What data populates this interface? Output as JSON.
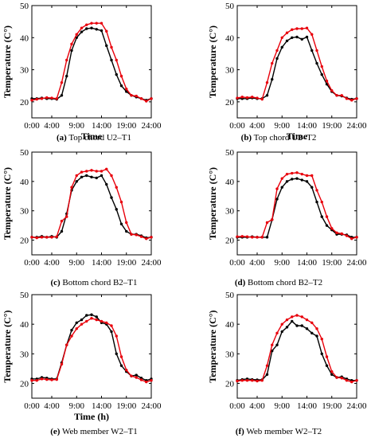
{
  "colors": {
    "series_a": "#000000",
    "series_b": "#e8000b",
    "axis": "#000000"
  },
  "chart_data": [
    {
      "type": "line",
      "caption_label": "(a)",
      "caption_text": " Top chord U2–T1",
      "xlabel": "Time",
      "ylabel": "Temperature (C°)",
      "xlim": [
        0,
        24
      ],
      "ylim": [
        15,
        50
      ],
      "x_ticks": [
        "0:00",
        "4:00",
        "9:00",
        "14:00",
        "19:00",
        "24:00"
      ],
      "y_ticks": [
        20,
        30,
        40,
        50
      ],
      "x": [
        0,
        1,
        2,
        3,
        4,
        5,
        6,
        7,
        8,
        9,
        10,
        11,
        12,
        13,
        14,
        15,
        16,
        17,
        18,
        19,
        20,
        21,
        22,
        23,
        24
      ],
      "series": [
        {
          "color": "#000000",
          "values": [
            21,
            21,
            21.2,
            21,
            21,
            20.8,
            22,
            28,
            36,
            40,
            41.8,
            42.8,
            43,
            42.6,
            42.2,
            37.5,
            33,
            28.5,
            25,
            23.2,
            22,
            21.5,
            21,
            20.5,
            21
          ]
        },
        {
          "color": "#e8000b",
          "values": [
            20.5,
            20.8,
            21,
            21.3,
            21.2,
            21,
            26,
            33,
            38,
            41,
            43,
            44,
            44.5,
            44.5,
            44.5,
            42,
            37,
            33,
            28,
            24,
            22,
            21.8,
            21,
            20.2,
            21
          ]
        }
      ]
    },
    {
      "type": "line",
      "caption_label": "(b)",
      "caption_text": " Top chord U2–T2",
      "xlabel": "Time",
      "ylabel": "Temperature (C°)",
      "xlim": [
        0,
        24
      ],
      "ylim": [
        15,
        50
      ],
      "x_ticks": [
        "0:00",
        "4:00",
        "9:00",
        "14:00",
        "19:00",
        "24:00"
      ],
      "y_ticks": [
        20,
        30,
        40,
        50
      ],
      "x": [
        0,
        1,
        2,
        3,
        4,
        5,
        6,
        7,
        8,
        9,
        10,
        11,
        12,
        13,
        14,
        15,
        16,
        17,
        18,
        19,
        20,
        21,
        22,
        23,
        24
      ],
      "series": [
        {
          "color": "#000000",
          "values": [
            21,
            21,
            21,
            21.2,
            21,
            21,
            22,
            27,
            33.5,
            37,
            39,
            40,
            40.2,
            39.5,
            40.2,
            36,
            32,
            28.5,
            25.5,
            23.2,
            22,
            21.8,
            21.2,
            20.8,
            21
          ]
        },
        {
          "color": "#e8000b",
          "values": [
            21.2,
            21.5,
            21.3,
            21.5,
            21.2,
            20.8,
            26,
            32,
            36,
            40,
            41.5,
            42.5,
            42.8,
            42.8,
            43,
            41,
            36,
            31,
            26.5,
            23.5,
            22,
            22,
            21,
            20.5,
            21
          ]
        }
      ]
    },
    {
      "type": "line",
      "caption_label": "(c)",
      "caption_text": " Bottom chord B2–T1",
      "xlabel": "",
      "ylabel": "Temperature (C°)",
      "xlim": [
        0,
        24
      ],
      "ylim": [
        15,
        50
      ],
      "x_ticks": [
        "0:00",
        "4:00",
        "9:00",
        "14:00",
        "19:00",
        "24:00"
      ],
      "y_ticks": [
        20,
        30,
        40,
        50
      ],
      "x": [
        0,
        1,
        2,
        3,
        4,
        5,
        6,
        7,
        8,
        9,
        10,
        11,
        12,
        13,
        14,
        15,
        16,
        17,
        18,
        19,
        20,
        21,
        22,
        23,
        24
      ],
      "series": [
        {
          "color": "#000000",
          "values": [
            21,
            21,
            21.3,
            21,
            21.3,
            21,
            23,
            29,
            37,
            40,
            41.5,
            42,
            41.5,
            41.2,
            42,
            39,
            34.5,
            30.5,
            25.5,
            23,
            22,
            22,
            21.5,
            20.8,
            21
          ]
        },
        {
          "color": "#e8000b",
          "values": [
            21,
            20.8,
            21,
            21,
            21,
            21.2,
            26.5,
            28,
            38,
            42,
            43.2,
            43.5,
            43.8,
            43.5,
            43.5,
            44.2,
            42,
            38,
            33,
            26,
            22,
            21.8,
            21.2,
            20.5,
            21
          ]
        }
      ]
    },
    {
      "type": "line",
      "caption_label": "(d)",
      "caption_text": " Bottom chord B2–T2",
      "xlabel": "",
      "ylabel": "Temperature (C°)",
      "xlim": [
        0,
        24
      ],
      "ylim": [
        15,
        50
      ],
      "x_ticks": [
        "0:00",
        "4:00",
        "9:00",
        "14:00",
        "19:00",
        "24:00"
      ],
      "y_ticks": [
        20,
        30,
        40,
        50
      ],
      "x": [
        0,
        1,
        2,
        3,
        4,
        5,
        6,
        7,
        8,
        9,
        10,
        11,
        12,
        13,
        14,
        15,
        16,
        17,
        18,
        19,
        20,
        21,
        22,
        23,
        24
      ],
      "series": [
        {
          "color": "#000000",
          "values": [
            21,
            21,
            21,
            21.2,
            21,
            21,
            21,
            27,
            34,
            38,
            40,
            40.8,
            41,
            40.5,
            40,
            38,
            33,
            28,
            25,
            23.5,
            22,
            22,
            21.8,
            21,
            21
          ]
        },
        {
          "color": "#e8000b",
          "values": [
            21.2,
            21.3,
            21.2,
            21,
            21,
            21,
            26,
            27,
            37.5,
            41,
            42.5,
            42.8,
            43,
            42.5,
            42,
            42,
            37,
            33,
            28,
            24,
            22.5,
            22.2,
            21.5,
            20.5,
            21
          ]
        }
      ]
    },
    {
      "type": "line",
      "caption_label": "(e)",
      "caption_text": " Web member W2–T1",
      "xlabel": "Time (h)",
      "ylabel": "Temperature (C°)",
      "xlim": [
        0,
        24
      ],
      "ylim": [
        15,
        50
      ],
      "x_ticks": [
        "0:00",
        "4:00",
        "9:00",
        "14:00",
        "19:00",
        "24:00"
      ],
      "y_ticks": [
        20,
        30,
        40,
        50
      ],
      "x": [
        0,
        1,
        2,
        3,
        4,
        5,
        6,
        7,
        8,
        9,
        10,
        11,
        12,
        13,
        14,
        15,
        16,
        17,
        18,
        19,
        20,
        21,
        22,
        23,
        24
      ],
      "series": [
        {
          "color": "#000000",
          "values": [
            21.5,
            21.5,
            22,
            21.8,
            21.5,
            21.5,
            27,
            33,
            38,
            40.5,
            41.5,
            43,
            43.2,
            42.5,
            40.5,
            40,
            37.5,
            30,
            26,
            24,
            22.5,
            22.8,
            21.8,
            21,
            21.5
          ]
        },
        {
          "color": "#e8000b",
          "values": [
            21,
            21,
            21.5,
            21.3,
            21.2,
            21.3,
            26.5,
            33,
            36,
            38.5,
            40,
            41,
            42,
            41.5,
            41,
            40.5,
            39.5,
            36,
            29,
            24.5,
            22.5,
            22,
            21.2,
            20.5,
            21
          ]
        }
      ]
    },
    {
      "type": "line",
      "caption_label": "(f)",
      "caption_text": " Web member W2–T2",
      "xlabel": "",
      "ylabel": "Temperature (C°)",
      "xlim": [
        0,
        24
      ],
      "ylim": [
        15,
        50
      ],
      "x_ticks": [
        "0:00",
        "4:00",
        "9:00",
        "14:00",
        "19:00",
        "24:00"
      ],
      "y_ticks": [
        20,
        30,
        40,
        50
      ],
      "x": [
        0,
        1,
        2,
        3,
        4,
        5,
        6,
        7,
        8,
        9,
        10,
        11,
        12,
        13,
        14,
        15,
        16,
        17,
        18,
        19,
        20,
        21,
        22,
        23,
        24
      ],
      "series": [
        {
          "color": "#000000",
          "values": [
            21,
            21.3,
            21.5,
            21.3,
            21.2,
            21.2,
            23,
            31,
            33,
            37.5,
            39,
            41,
            39.5,
            39.5,
            38.5,
            37,
            36,
            30,
            26,
            23,
            22,
            22.2,
            21.5,
            21,
            21
          ]
        },
        {
          "color": "#e8000b",
          "values": [
            20.8,
            21,
            21,
            21,
            20.8,
            21,
            26,
            33,
            37,
            40,
            41.5,
            42.5,
            43,
            42.5,
            41.5,
            40.5,
            38.5,
            35,
            29,
            24,
            22,
            21.8,
            21,
            20.5,
            21
          ]
        }
      ]
    }
  ]
}
